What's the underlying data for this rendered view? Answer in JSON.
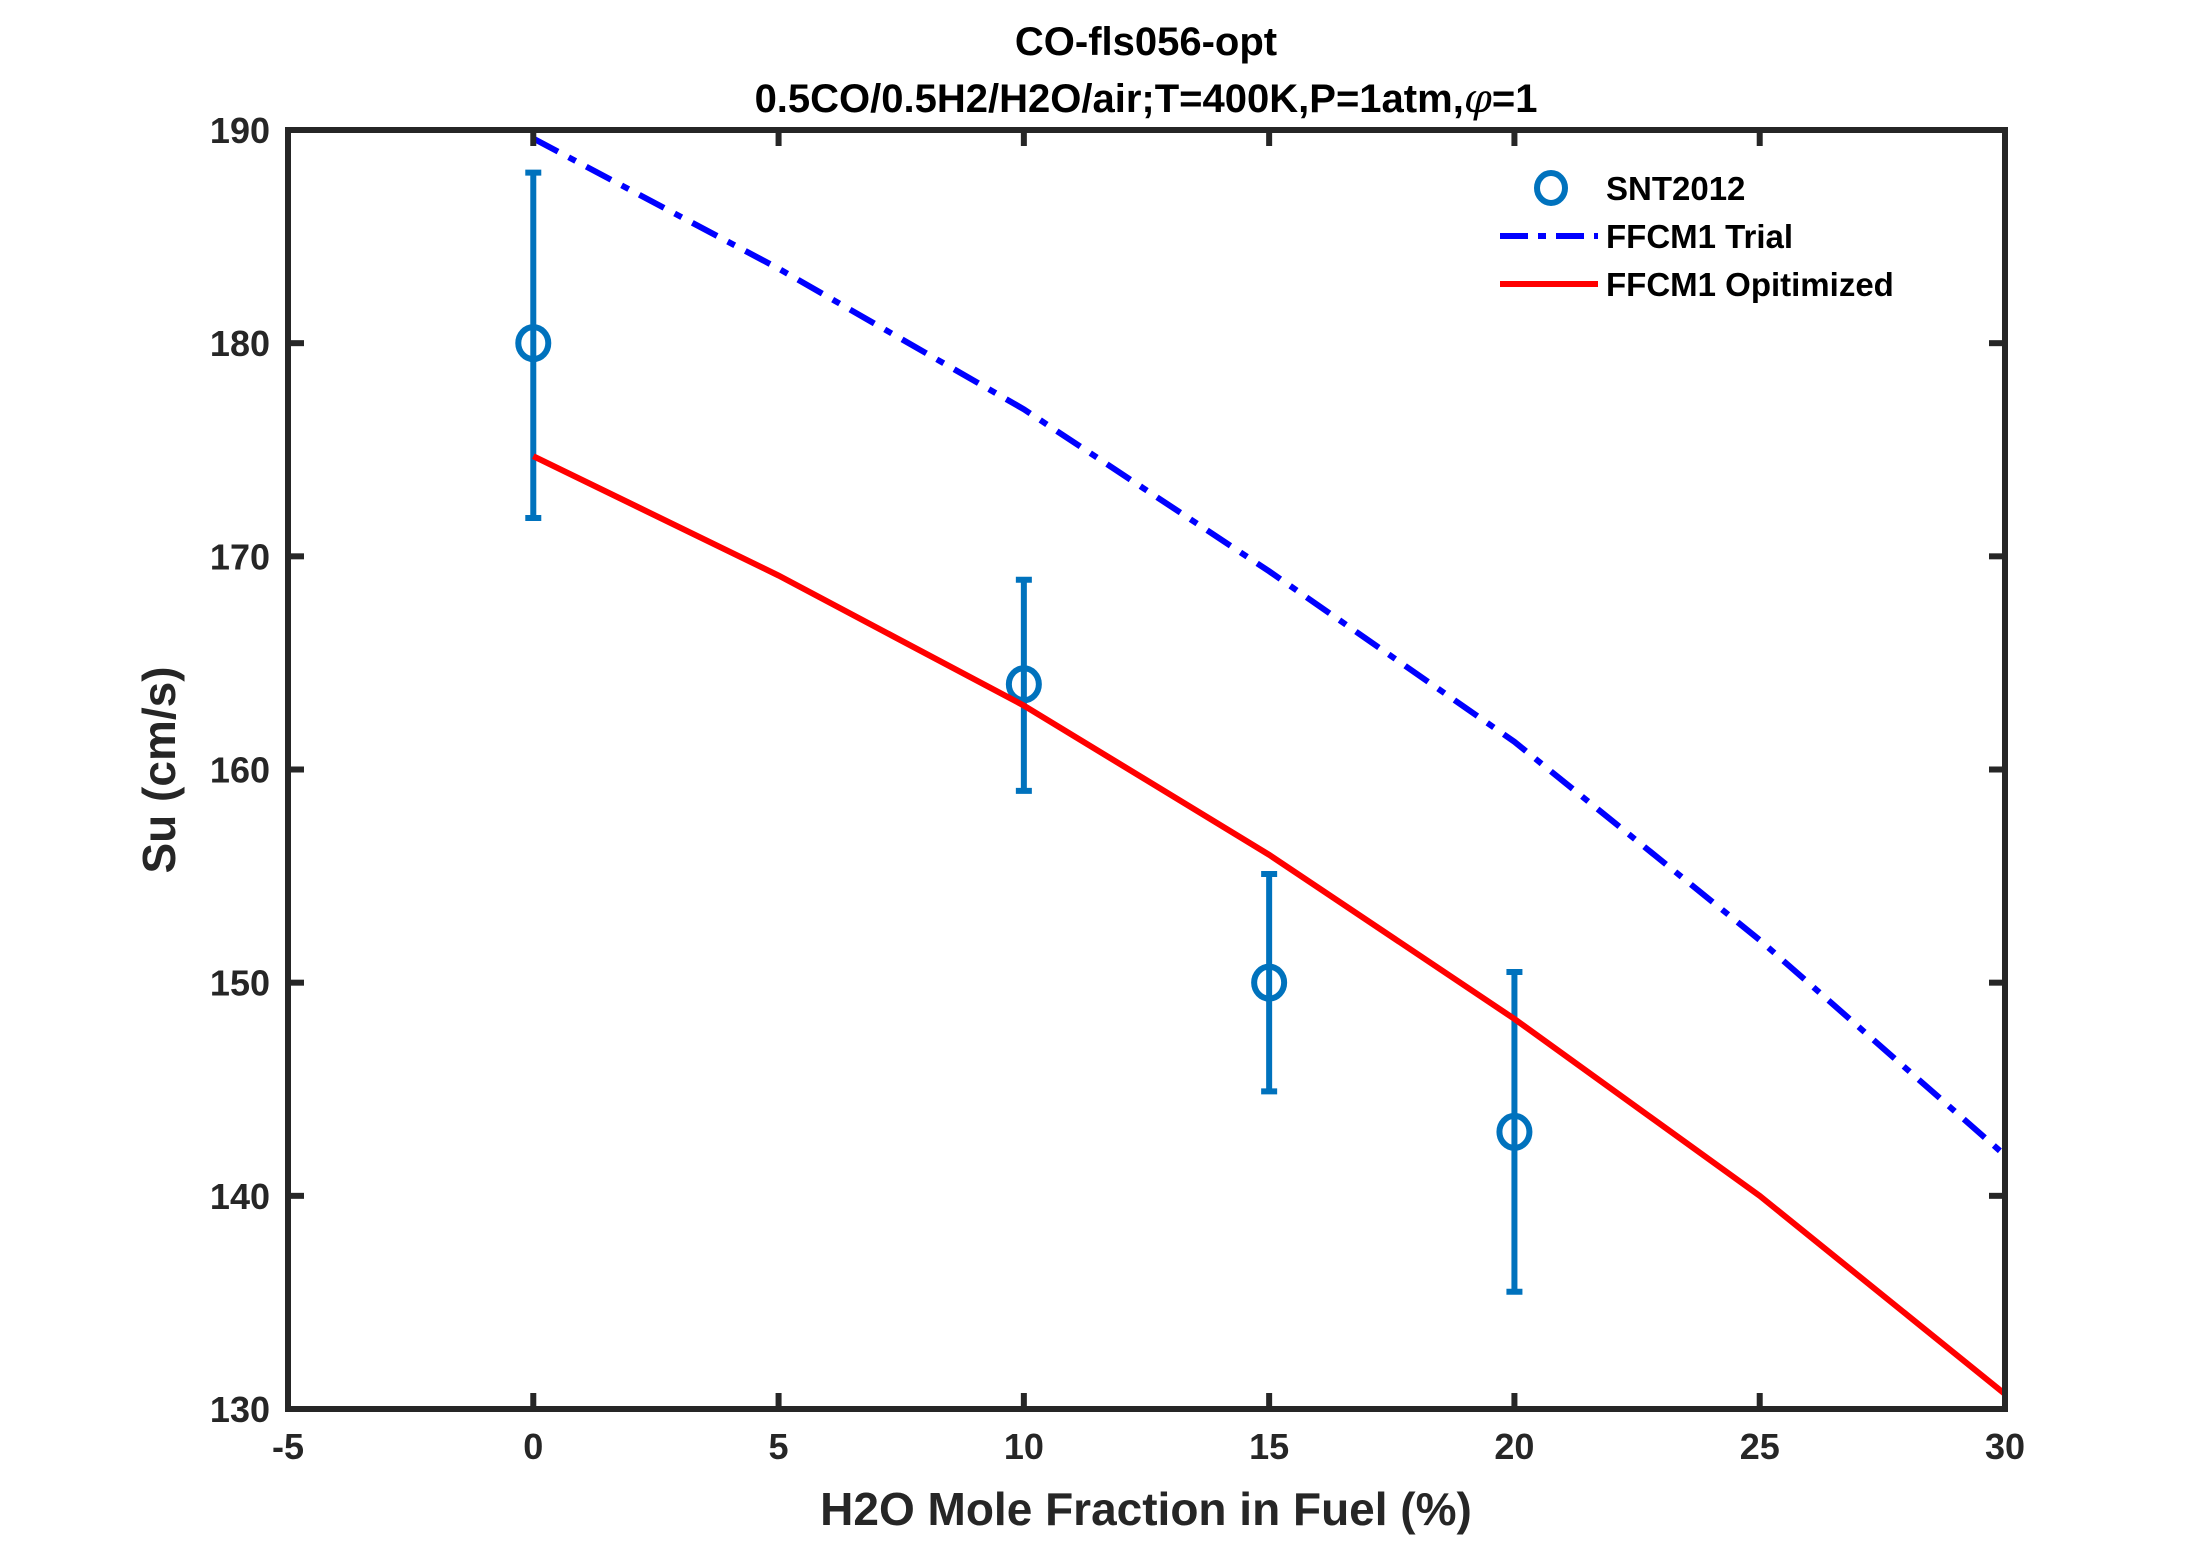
{
  "chart_data": {
    "type": "line",
    "title": "CO-fls056-opt",
    "subtitle_prefix": "0.5CO/0.5H2/H2O/air;T=400K,P=1atm,",
    "subtitle_symbol": "φ",
    "subtitle_suffix": "=1",
    "xlabel": "H2O Mole Fraction in Fuel (%)",
    "ylabel": "Su (cm/s)",
    "xlim": [
      -5,
      30
    ],
    "ylim": [
      130,
      190
    ],
    "xticks": [
      -5,
      0,
      5,
      10,
      15,
      20,
      25,
      30
    ],
    "yticks": [
      130,
      140,
      150,
      160,
      170,
      180,
      190
    ],
    "grid": false,
    "legend_position": "top-right",
    "series": [
      {
        "name": "SNT2012",
        "kind": "errorbar",
        "color": "#0072BD",
        "x": [
          0,
          10,
          15,
          20
        ],
        "y": [
          180,
          164,
          150,
          143
        ],
        "ylow": [
          171.8,
          159,
          144.9,
          135.5
        ],
        "yhigh": [
          188,
          168.9,
          155.1,
          150.5
        ]
      },
      {
        "name": "FFCM1 Trial",
        "kind": "dashdot",
        "color": "#0000FF",
        "x": [
          0,
          5,
          10,
          15,
          20,
          25,
          30
        ],
        "y": [
          189.6,
          183.5,
          176.9,
          169.3,
          161.3,
          152.0,
          141.9
        ]
      },
      {
        "name": "FFCM1 Opitimized",
        "kind": "solid",
        "color": "#FF0000",
        "x": [
          0,
          5,
          10,
          15,
          20,
          25,
          30
        ],
        "y": [
          174.7,
          169.1,
          163.0,
          156.0,
          148.3,
          140.0,
          130.7
        ]
      }
    ]
  }
}
